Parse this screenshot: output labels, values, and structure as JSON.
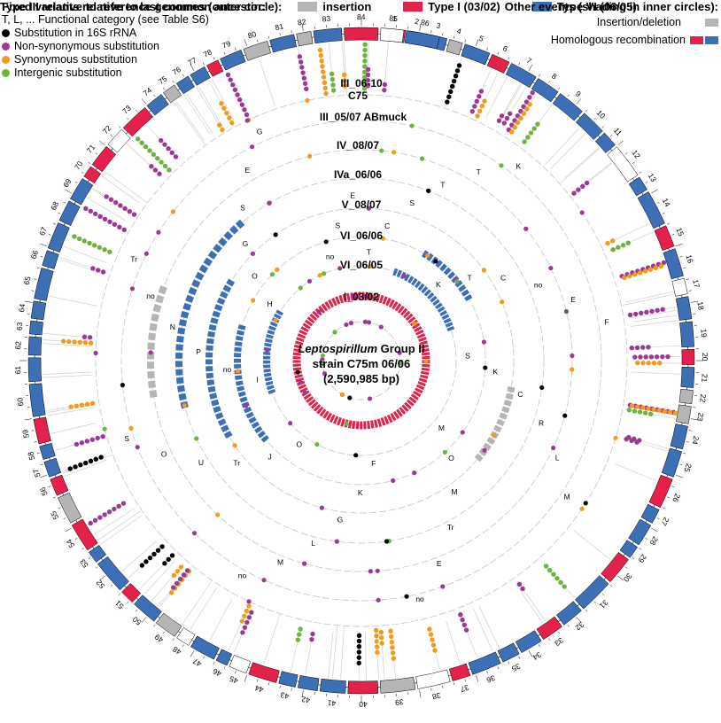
{
  "colors": {
    "rrna": "#000000",
    "nonsyn": "#9b3a93",
    "syn": "#f39a1c",
    "intergenic": "#6db33f",
    "indel": "#b5b5b5",
    "type1": "#e4214a",
    "type6": "#3d6fb6"
  },
  "legend_left": {
    "title": "Fixed variants relative to last common ancestor:",
    "subtitle": "T, L, ... Functional category (see Table S6)",
    "items": [
      {
        "label": "Substitution in 16S rRNA",
        "color": "#000000"
      },
      {
        "label": "Non-synonymous substitution",
        "color": "#9b3a93"
      },
      {
        "label": "Synonymous substitution",
        "color": "#f39a1c"
      },
      {
        "label": "Intergenic substitution",
        "color": "#6db33f"
      }
    ]
  },
  "legend_right": {
    "title": "Other events (shading in inner circles):",
    "items": [
      {
        "label": "Insertion/deletion",
        "colors": [
          "#b5b5b5"
        ]
      },
      {
        "label": "Homologous recombination",
        "colors": [
          "#e4214a",
          "#3d6fb6"
        ]
      }
    ]
  },
  "legend_bottom": {
    "title": "Type III relative to reference genomes (outer circle):",
    "items": [
      {
        "label": "insertion",
        "color": "#b5b5b5"
      },
      {
        "label": "Type I (03/02)",
        "color": "#e4214a"
      },
      {
        "label": "Type VI (06/05)",
        "color": "#3d6fb6"
      }
    ]
  },
  "center": {
    "line1_italic": "Leptospirillum",
    "line1_rest": " Group II",
    "line2": "strain C75m 06/06",
    "line3": "(2,590,985 bp)"
  },
  "ring_labels": [
    "III_06-10",
    "C75",
    "III_05/07 ABmuck",
    "IV_08/07",
    "IVa_06/06",
    "V_08/07",
    "VI_06/06",
    "VI_06/05",
    "I_03/02"
  ],
  "segment_numbers": [
    "1",
    "2",
    "3",
    "4",
    "5",
    "6",
    "7",
    "8",
    "9",
    "10",
    "11",
    "12",
    "13",
    "14",
    "15",
    "16",
    "17",
    "18",
    "19",
    "20",
    "21",
    "22",
    "23",
    "24",
    "25",
    "26",
    "27",
    "28",
    "29",
    "30",
    "31",
    "32",
    "33",
    "34",
    "35",
    "36",
    "37",
    "38",
    "39",
    "40",
    "41",
    "42",
    "43",
    "44",
    "45",
    "46",
    "47",
    "48",
    "49",
    "50",
    "51",
    "52",
    "53",
    "54",
    "55",
    "56",
    "57",
    "58",
    "59",
    "60",
    "61",
    "62",
    "63",
    "64",
    "65",
    "66",
    "67",
    "68",
    "69",
    "70",
    "71",
    "72",
    "73",
    "74",
    "75",
    "76",
    "77",
    "78",
    "79",
    "80",
    "81",
    "82",
    "83",
    "84",
    "85",
    "86"
  ],
  "category_letters": [
    "T",
    "C",
    "S",
    "T",
    "T",
    "K",
    "K",
    "T",
    "C",
    "no",
    "E",
    "F",
    "S",
    "K",
    "C",
    "R",
    "L",
    "M",
    "M",
    "O",
    "M",
    "Tr",
    "E",
    "no",
    "F",
    "K",
    "G",
    "L",
    "M",
    "no",
    "O",
    "J",
    "Tr",
    "U",
    "O",
    "S",
    "I",
    "no",
    "P",
    "N",
    "no",
    "Tr",
    "H",
    "O",
    "G",
    "S",
    "E",
    "G",
    "no",
    "S",
    "E"
  ]
}
